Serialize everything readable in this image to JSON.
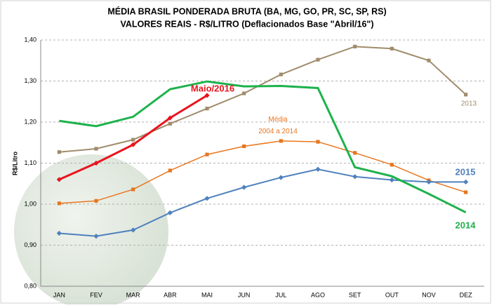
{
  "chart_data": {
    "type": "line",
    "title": "MÉDIA BRASIL PONDERADA BRUTA (BA, MG, GO, PR, SC, SP, RS)",
    "subtitle": "VALORES REAIS - R$/LITRO (Deflacionados  Base \"Abril/16\")",
    "y_label": "R$/Litro",
    "categories": [
      "JAN",
      "FEV",
      "MAR",
      "ABR",
      "MAI",
      "JUN",
      "JUL",
      "AGO",
      "SET",
      "OUT",
      "NOV",
      "DEZ"
    ],
    "ylim": [
      0.8,
      1.4
    ],
    "yticks": [
      {
        "value": 0.8,
        "label": "0,80"
      },
      {
        "value": 0.9,
        "label": "0,90"
      },
      {
        "value": 1.0,
        "label": "1,00"
      },
      {
        "value": 1.1,
        "label": "1,10"
      },
      {
        "value": 1.2,
        "label": "1,20"
      },
      {
        "value": 1.3,
        "label": "1,30"
      },
      {
        "value": 1.4,
        "label": "1,40"
      }
    ],
    "grid": true,
    "series": [
      {
        "name": "2013",
        "color": "#a08c6c",
        "values": [
          1.127,
          1.135,
          1.157,
          1.196,
          1.233,
          1.27,
          1.316,
          1.352,
          1.384,
          1.379,
          1.35,
          1.267
        ]
      },
      {
        "name": "Média 2004 a 2014",
        "color": "#e8761e",
        "values": [
          1.002,
          1.008,
          1.036,
          1.082,
          1.121,
          1.141,
          1.154,
          1.152,
          1.125,
          1.096,
          1.058,
          1.029
        ]
      },
      {
        "name": "2015",
        "color": "#4f81bd",
        "values": [
          0.929,
          0.922,
          0.937,
          0.979,
          1.014,
          1.041,
          1.065,
          1.085,
          1.067,
          1.059,
          1.054,
          1.054
        ]
      },
      {
        "name": "2014",
        "color": "#1db24c",
        "values": [
          1.203,
          1.19,
          1.213,
          1.28,
          1.299,
          1.287,
          1.288,
          1.283,
          1.09,
          1.068,
          1.025,
          0.98
        ]
      },
      {
        "name": "Maio/2016",
        "color": "#e8141e",
        "values": [
          1.06,
          1.1,
          1.145,
          1.21,
          1.265,
          null,
          null,
          null,
          null,
          null,
          null,
          null
        ]
      }
    ]
  }
}
